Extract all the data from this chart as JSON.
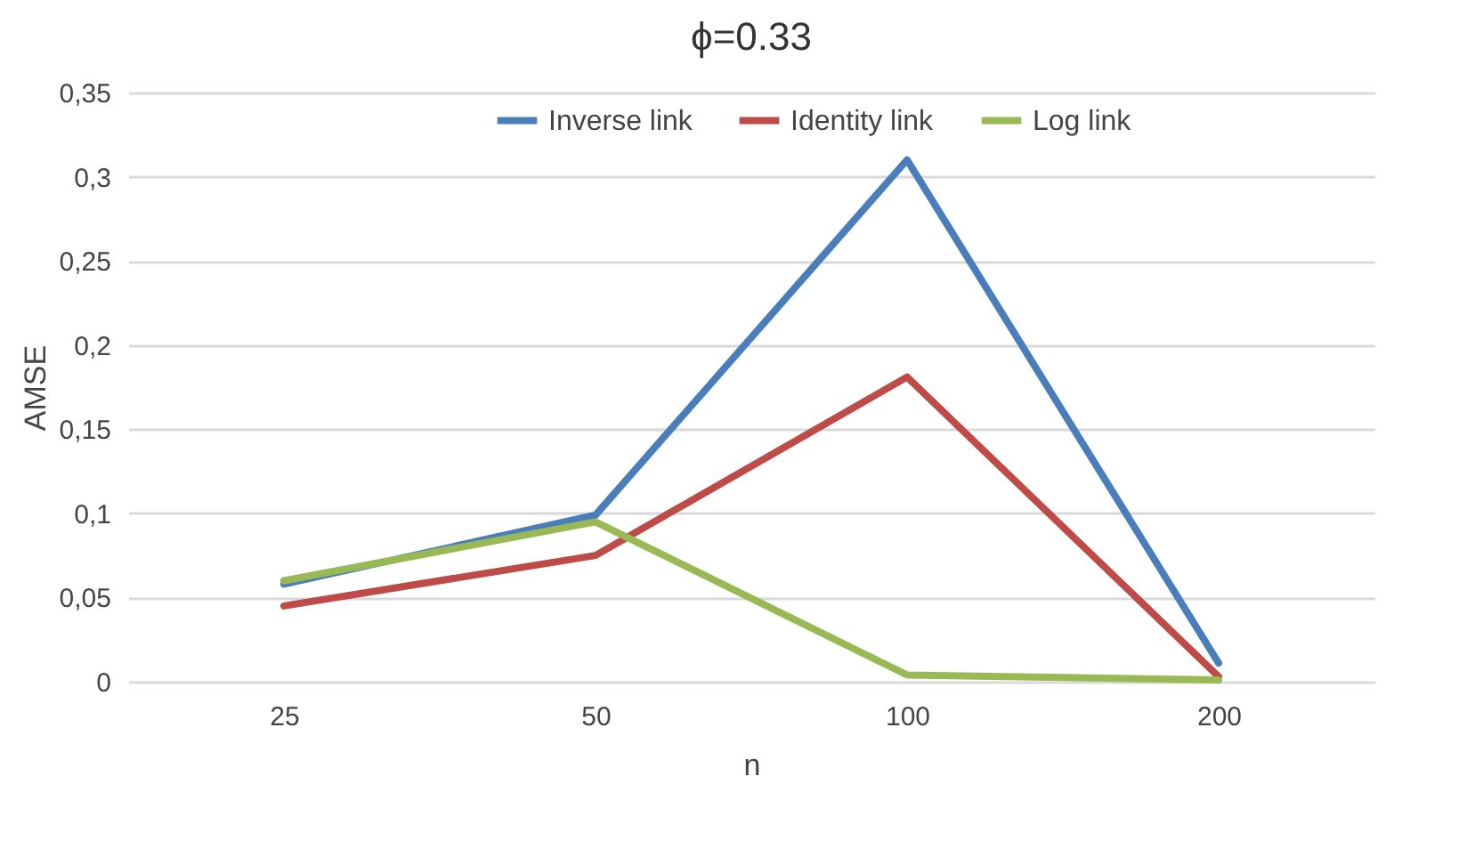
{
  "chart_data": {
    "type": "line",
    "title": "ϕ=0.33",
    "xlabel": "n",
    "ylabel": "AMSE",
    "categories": [
      "25",
      "50",
      "100",
      "200"
    ],
    "series": [
      {
        "name": "Inverse link",
        "color": "#4a7ebb",
        "values": [
          0.058,
          0.099,
          0.31,
          0.011
        ]
      },
      {
        "name": "Identity link",
        "color": "#be4b48",
        "values": [
          0.045,
          0.075,
          0.181,
          0.003
        ]
      },
      {
        "name": "Log link",
        "color": "#98b954",
        "values": [
          0.06,
          0.095,
          0.004,
          0.001
        ]
      }
    ],
    "ylim": [
      0,
      0.35
    ],
    "yticks": [
      0,
      {
        "value": 0.05,
        "label": "0,05"
      },
      {
        "value": 0.1,
        "label": "0,1"
      },
      {
        "value": 0.15,
        "label": "0,15"
      },
      {
        "value": 0.2,
        "label": "0,2"
      },
      {
        "value": 0.25,
        "label": "0,25"
      },
      {
        "value": 0.3,
        "label": "0,3"
      },
      {
        "value": 0.35,
        "label": "0,35"
      }
    ],
    "grid": "y",
    "legend": "top",
    "marker": "none",
    "line_style": "solid"
  }
}
